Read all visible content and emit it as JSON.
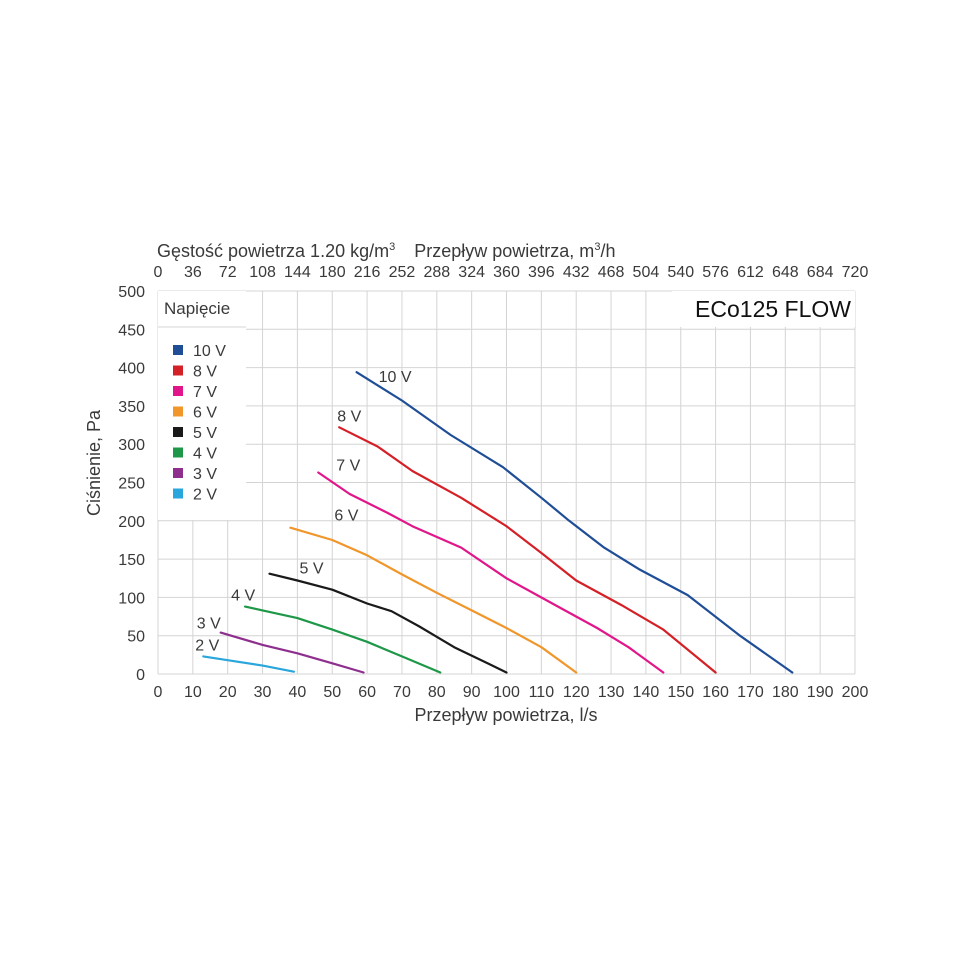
{
  "chart_data": {
    "type": "line",
    "title": "ECo125 FLOW",
    "xlabel": "Przepływ powietrza, l/s",
    "ylabel": "Ciśnienie, Pa",
    "xlim": [
      0,
      200
    ],
    "ylim": [
      0,
      500
    ],
    "x_ticks": [
      "0",
      "10",
      "20",
      "30",
      "40",
      "50",
      "60",
      "70",
      "80",
      "90",
      "100",
      "110",
      "120",
      "130",
      "140",
      "150",
      "160",
      "170",
      "180",
      "190",
      "200"
    ],
    "y_ticks": [
      "0",
      "50",
      "100",
      "150",
      "200",
      "250",
      "300",
      "350",
      "400",
      "450",
      "500"
    ],
    "top_axis": {
      "density_label": "Gęstość powietrza 1.20 kg/m",
      "density_sup": "3",
      "flow_label": "Przepływ powietrza, m",
      "flow_sup": "3",
      "flow_unit_suffix": "/h",
      "ticks": [
        "0",
        "36",
        "72",
        "108",
        "144",
        "180",
        "216",
        "252",
        "288",
        "324",
        "360",
        "396",
        "432",
        "468",
        "504",
        "540",
        "576",
        "612",
        "648",
        "684",
        "720"
      ]
    },
    "legend": {
      "title": "Napięcie",
      "placement": "top-left"
    },
    "grid": true,
    "series": [
      {
        "name": "10 V",
        "color": "#1f4e96",
        "label": "10 V",
        "points": [
          [
            57,
            394
          ],
          [
            70,
            357
          ],
          [
            84,
            312
          ],
          [
            99,
            270
          ],
          [
            110,
            230
          ],
          [
            118,
            200
          ],
          [
            128,
            165
          ],
          [
            138,
            137
          ],
          [
            152,
            103
          ],
          [
            167,
            50
          ],
          [
            182,
            2
          ]
        ]
      },
      {
        "name": "8 V",
        "color": "#d42027",
        "label": "8 V",
        "points": [
          [
            52,
            322
          ],
          [
            63,
            297
          ],
          [
            73,
            265
          ],
          [
            87,
            230
          ],
          [
            100,
            193
          ],
          [
            110,
            158
          ],
          [
            120,
            122
          ],
          [
            133,
            90
          ],
          [
            145,
            58
          ],
          [
            160,
            2
          ]
        ]
      },
      {
        "name": "7 V",
        "color": "#e0168a",
        "label": "7 V",
        "points": [
          [
            46,
            263
          ],
          [
            55,
            235
          ],
          [
            66,
            210
          ],
          [
            73,
            193
          ],
          [
            87,
            165
          ],
          [
            100,
            125
          ],
          [
            114,
            90
          ],
          [
            126,
            60
          ],
          [
            135,
            35
          ],
          [
            145,
            2
          ]
        ]
      },
      {
        "name": "6 V",
        "color": "#f0962b",
        "label": "6 V",
        "points": [
          [
            38,
            191
          ],
          [
            50,
            175
          ],
          [
            60,
            155
          ],
          [
            70,
            130
          ],
          [
            80,
            106
          ],
          [
            90,
            83
          ],
          [
            100,
            60
          ],
          [
            110,
            35
          ],
          [
            120,
            2
          ]
        ]
      },
      {
        "name": "5 V",
        "color": "#1a1a1a",
        "label": "5 V",
        "points": [
          [
            32,
            131
          ],
          [
            40,
            122
          ],
          [
            50,
            110
          ],
          [
            60,
            92
          ],
          [
            67,
            82
          ],
          [
            75,
            62
          ],
          [
            85,
            35
          ],
          [
            95,
            13
          ],
          [
            100,
            2
          ]
        ]
      },
      {
        "name": "4 V",
        "color": "#1e9848",
        "label": "4 V",
        "points": [
          [
            25,
            88
          ],
          [
            30,
            83
          ],
          [
            40,
            73
          ],
          [
            50,
            58
          ],
          [
            60,
            42
          ],
          [
            70,
            23
          ],
          [
            81,
            2
          ]
        ]
      },
      {
        "name": "3 V",
        "color": "#8e2f8e",
        "label": "3 V",
        "points": [
          [
            18,
            54
          ],
          [
            30,
            38
          ],
          [
            40,
            27
          ],
          [
            50,
            14
          ],
          [
            59,
            2
          ]
        ]
      },
      {
        "name": "2 V",
        "color": "#29a6dc",
        "label": "2 V",
        "points": [
          [
            13,
            23
          ],
          [
            20,
            18
          ],
          [
            30,
            11
          ],
          [
            39,
            3
          ]
        ]
      }
    ]
  }
}
